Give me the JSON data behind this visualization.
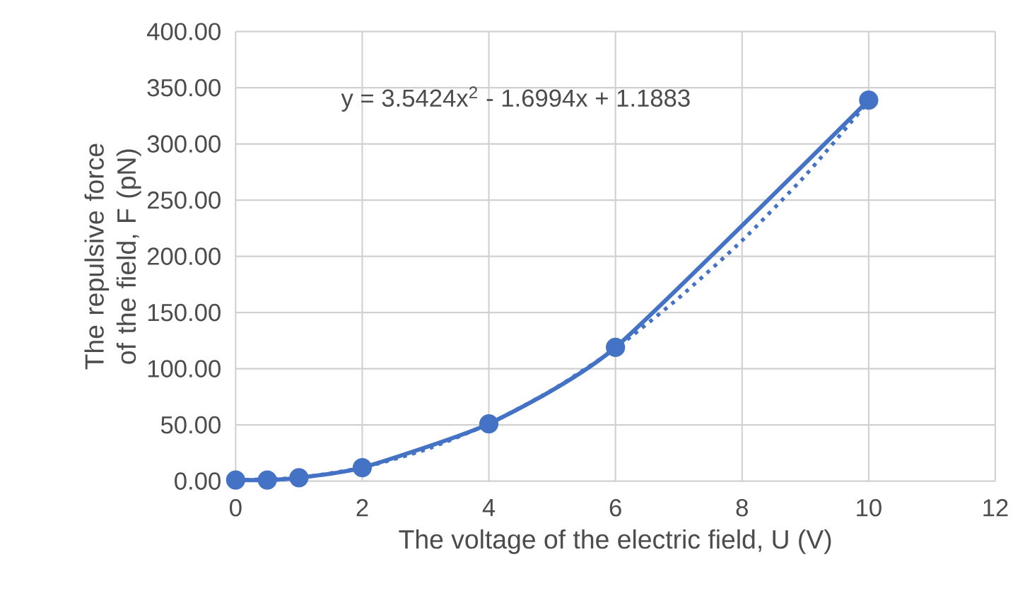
{
  "chart_data": {
    "type": "line",
    "xlabel": "The voltage of the electric field, U (V)",
    "ylabel": "The repulsive force of the field, F (pN)",
    "annotations": [
      "y = 3.5424x$^{2}$ - 1.6994x + 1.1883"
    ],
    "x": [
      0,
      0.5,
      1,
      2,
      4,
      6,
      10
    ],
    "series": [
      {
        "color": "#4472c4",
        "values": [
          1,
          1,
          3,
          12,
          51,
          119,
          339
        ],
        "marker": "circle",
        "line_style": "solid"
      },
      {
        "type": "line",
        "color": "#4472c4",
        "x": [
          0,
          1,
          2,
          3,
          4,
          5,
          6,
          7,
          8,
          9,
          10
        ],
        "values": [
          1,
          3,
          12,
          28,
          51,
          81,
          118,
          163,
          214,
          272,
          338
        ],
        "marker": "none",
        "line_style": "dotted"
      }
    ],
    "xlim": [
      0,
      12
    ],
    "xticks": [
      0,
      2,
      4,
      6,
      8,
      10,
      12
    ],
    "ylim": [
      0,
      400
    ],
    "yticks": [
      {
        "value": 0,
        "label": "0.00"
      },
      {
        "value": 50,
        "label": "50.00"
      },
      {
        "value": 100,
        "label": "100.00"
      },
      {
        "value": 150,
        "label": "150.00"
      },
      {
        "value": 200,
        "label": "200.00"
      },
      {
        "value": 250,
        "label": "250.00"
      },
      {
        "value": 300,
        "label": "300.00"
      },
      {
        "value": 350,
        "label": "350.00"
      },
      {
        "value": 400,
        "label": "400.00"
      }
    ],
    "grid": true
  }
}
